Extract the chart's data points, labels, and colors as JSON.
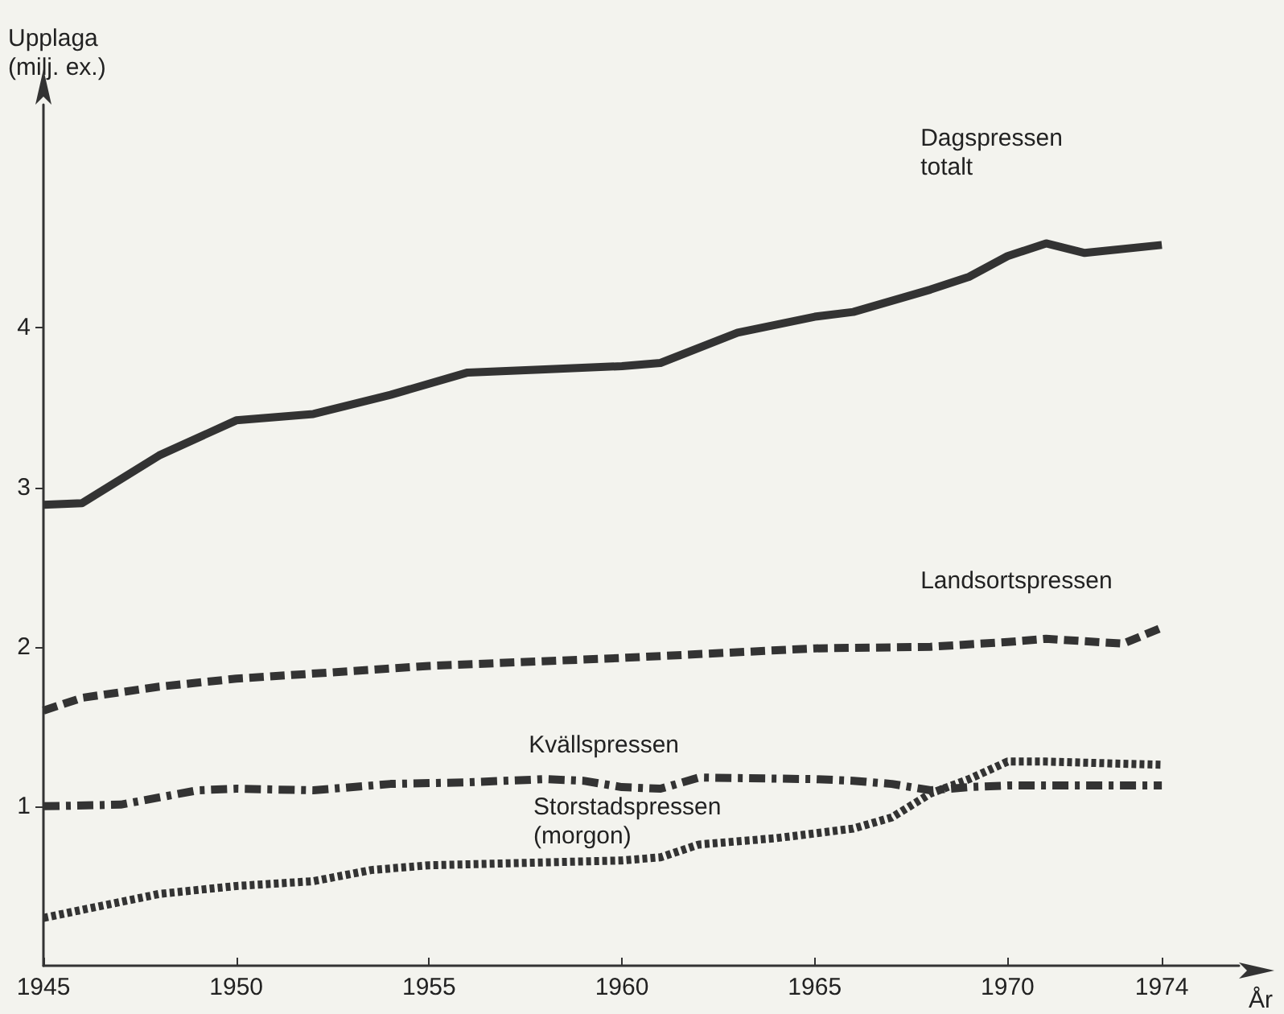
{
  "chart_data": {
    "type": "line",
    "xlabel": "År",
    "ylabel": "Upplaga\n(milj. ex.)",
    "xlim": [
      1945,
      1976
    ],
    "xticks": [
      1945,
      1950,
      1955,
      1960,
      1965,
      1970,
      1974
    ],
    "ylim": [
      0,
      5.4
    ],
    "yticks": [
      1,
      2,
      3,
      4
    ],
    "grid": false,
    "legend": false,
    "series": [
      {
        "name": "Dagspressen totalt",
        "color": "#333333",
        "line_style": "solid",
        "x": [
          1945,
          1946,
          1948,
          1950,
          1952,
          1954,
          1956,
          1958,
          1960,
          1961,
          1963,
          1965,
          1966,
          1968,
          1969,
          1970,
          1971,
          1972,
          1974
        ],
        "values": [
          2.89,
          2.9,
          3.2,
          3.42,
          3.46,
          3.58,
          3.72,
          3.74,
          3.76,
          3.78,
          3.97,
          4.07,
          4.1,
          4.24,
          4.32,
          4.45,
          4.53,
          4.47,
          4.52
        ]
      },
      {
        "name": "Landsortspressen",
        "color": "#333333",
        "line_style": "dashed",
        "x": [
          1945,
          1946,
          1948,
          1950,
          1955,
          1960,
          1965,
          1968,
          1970,
          1971,
          1973,
          1974
        ],
        "values": [
          1.6,
          1.68,
          1.75,
          1.8,
          1.88,
          1.93,
          1.99,
          2.0,
          2.03,
          2.05,
          2.02,
          2.12
        ]
      },
      {
        "name": "Kvällspressen",
        "color": "#333333",
        "line_style": "dashdot",
        "x": [
          1945,
          1947,
          1949,
          1950,
          1952,
          1954,
          1956,
          1958,
          1959,
          1960,
          1961,
          1962,
          1965,
          1966,
          1967,
          1968,
          1969,
          1970,
          1974
        ],
        "values": [
          1.0,
          1.01,
          1.1,
          1.11,
          1.1,
          1.14,
          1.15,
          1.17,
          1.16,
          1.12,
          1.11,
          1.18,
          1.17,
          1.16,
          1.14,
          1.1,
          1.12,
          1.13,
          1.13
        ]
      },
      {
        "name": "Storstadspressen (morgon)",
        "color": "#333333",
        "line_style": "dotted",
        "x": [
          1945,
          1948,
          1950,
          1952,
          1953.5,
          1955,
          1960,
          1961,
          1962,
          1964,
          1966,
          1967,
          1968,
          1969,
          1970,
          1971,
          1974
        ],
        "values": [
          0.3,
          0.45,
          0.5,
          0.53,
          0.6,
          0.63,
          0.66,
          0.68,
          0.76,
          0.8,
          0.86,
          0.93,
          1.08,
          1.17,
          1.28,
          1.28,
          1.26
        ]
      }
    ]
  }
}
